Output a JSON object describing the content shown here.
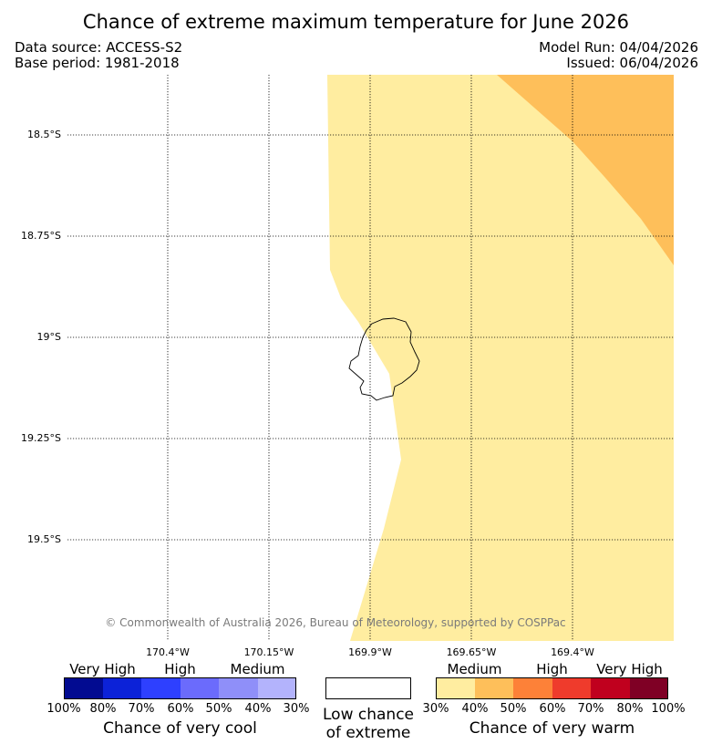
{
  "title": "Chance of extreme maximum temperature for June 2026",
  "data_source": "Data source: ACCESS-S2",
  "base_period": "Base period: 1981-2018",
  "model_run": "Model Run: 04/04/2026",
  "issued": "Issued: 06/04/2026",
  "copyright": "© Commonwealth of Australia 2026, Bureau of Meteorology, supported by COSPPac",
  "map": {
    "lat_labels": [
      "18.5°S",
      "18.75°S",
      "19°S",
      "19.25°S",
      "19.5°S"
    ],
    "lon_labels": [
      "170.4°W",
      "170.15°W",
      "169.9°W",
      "169.65°W",
      "169.4°W"
    ],
    "regions": [
      {
        "name": "medium-warm",
        "range": "30%-40%",
        "color": "#ffeda0"
      },
      {
        "name": "medium-warm",
        "range": "40%-50%",
        "color": "#febf5a"
      }
    ]
  },
  "legend": {
    "cool": {
      "categories": [
        "Very High",
        "High",
        "Medium"
      ],
      "colors": [
        "#020b91",
        "#0c22d8",
        "#2e40ff",
        "#6b6bfc",
        "#8f8ff9",
        "#b3b3fc"
      ],
      "ticks": [
        "100%",
        "80%",
        "70%",
        "60%",
        "50%",
        "40%",
        "30%"
      ],
      "caption": "Chance of very cool"
    },
    "neutral": {
      "color": "#ffffff",
      "caption_line1": "Low chance",
      "caption_line2": "of extreme"
    },
    "warm": {
      "categories": [
        "Medium",
        "High",
        "Very High"
      ],
      "colors": [
        "#ffeda0",
        "#febf5a",
        "#fd8138",
        "#ef3b2c",
        "#c0001e",
        "#7f0025"
      ],
      "ticks": [
        "30%",
        "40%",
        "50%",
        "60%",
        "70%",
        "80%",
        "100%"
      ],
      "caption": "Chance of very warm"
    }
  }
}
